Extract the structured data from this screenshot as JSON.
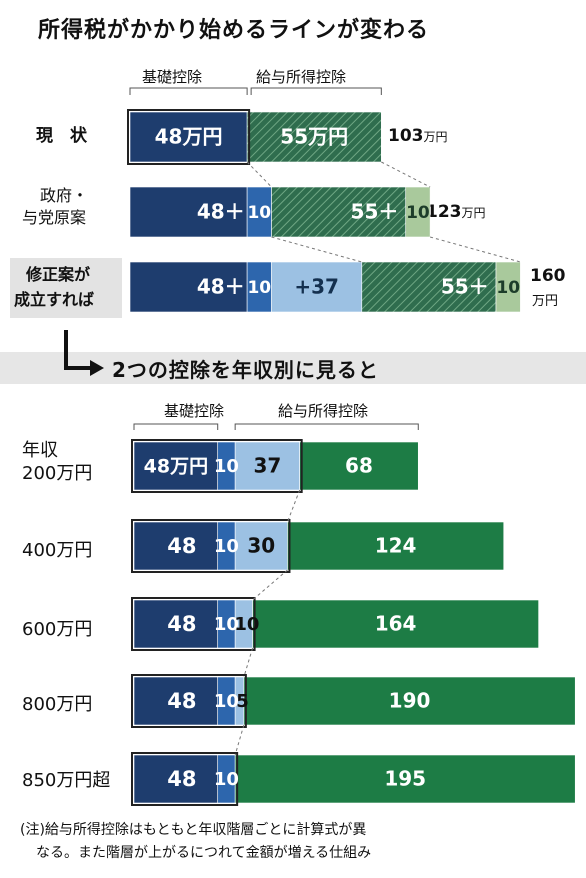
{
  "title": "所得税がかかり始めるラインが変わる",
  "top_headers": {
    "basic": "基礎控除",
    "salary": "給与所得控除"
  },
  "bottom_title": "2つの控除を年収別に見ると",
  "bottom_headers": {
    "basic": "基礎控除",
    "salary": "給与所得控除"
  },
  "income_header": "年収",
  "note_line1": "(注)給与所得控除はもともと年収階層ごとに計算式が異",
  "note_line2": "なる。また階層が上がるにつれて金額が増える仕組み",
  "colors": {
    "navy": "#1e3d6e",
    "mid_blue": "#2d66ad",
    "light_blue": "#9cc1e3",
    "green": "#1d7c45",
    "hatch_green": "#2f6d4e",
    "light_green": "#a9c99c"
  },
  "chart_data": [
    {
      "type": "bar",
      "stacked": true,
      "orientation": "horizontal",
      "title": "所得税がかかり始めるラインが変わる",
      "categories": [
        "現 状",
        "政府・与党原案",
        "修正案が成立すれば"
      ],
      "series": [
        {
          "name": "基礎控除",
          "values": [
            48,
            48,
            48
          ]
        },
        {
          "values": [
            0,
            10,
            10
          ]
        },
        {
          "values": [
            0,
            0,
            37
          ]
        },
        {
          "name": "給与所得控除",
          "values": [
            55,
            55,
            55
          ]
        },
        {
          "values": [
            0,
            10,
            10
          ]
        }
      ],
      "totals": [
        "103万円",
        "123万円",
        "160万円"
      ],
      "segment_labels": [
        [
          "48万円",
          "55万円"
        ],
        [
          "48＋",
          "10",
          "55＋",
          "10"
        ],
        [
          "48＋",
          "10",
          "+37",
          "55＋",
          "10"
        ]
      ]
    },
    {
      "type": "bar",
      "stacked": true,
      "orientation": "horizontal",
      "title": "2つの控除を年収別に見ると",
      "categories": [
        "200万円",
        "400万円",
        "600万円",
        "800万円",
        "850万円超"
      ],
      "series": [
        {
          "name": "基礎控除",
          "values": [
            48,
            48,
            48,
            48,
            48
          ]
        },
        {
          "values": [
            10,
            10,
            10,
            10,
            10
          ]
        },
        {
          "values": [
            37,
            30,
            10,
            5,
            0
          ]
        },
        {
          "name": "給与所得控除",
          "values": [
            68,
            124,
            164,
            190,
            195
          ]
        }
      ],
      "segment_labels": [
        [
          "48万円",
          "10",
          "37",
          "68"
        ],
        [
          "48",
          "10",
          "30",
          "124"
        ],
        [
          "48",
          "10",
          "10",
          "164"
        ],
        [
          "48",
          "10",
          "5",
          "190"
        ],
        [
          "48",
          "10",
          "195"
        ]
      ]
    }
  ],
  "top_row_labels": [
    {
      "lines": [
        "現　状"
      ]
    },
    {
      "lines": [
        "政府・",
        "与党原案"
      ]
    },
    {
      "lines": [
        "修正案が",
        "成立すれば"
      ]
    }
  ],
  "top_totals": [
    {
      "num": "103",
      "unit": "万円"
    },
    {
      "num": "123",
      "unit": "万円"
    },
    {
      "num": "160",
      "unit": "万円"
    }
  ],
  "bottom_row_labels": [
    "200万円",
    "400万円",
    "600万円",
    "800万円",
    "850万円超"
  ]
}
